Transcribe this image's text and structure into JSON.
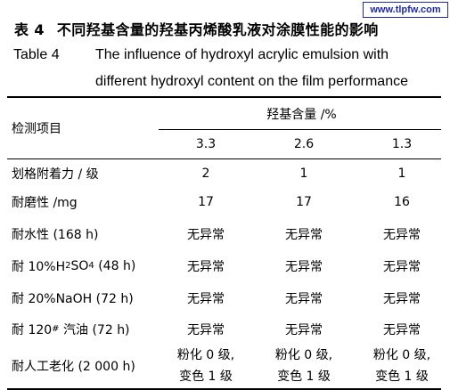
{
  "watermark": "www.tlpfw.com",
  "caption": {
    "cn_number": "表 4",
    "cn_title": "不同羟基含量的羟基丙烯酸乳液对涂膜性能的影响",
    "en_number": "Table 4",
    "en_title_line1": "The influence of hydroxyl acrylic emulsion with",
    "en_title_line2": "different hydroxyl content on the film performance"
  },
  "table": {
    "row_header": "检测项目",
    "group_header": "羟基含量 /%",
    "columns": [
      "3.3",
      "2.6",
      "1.3"
    ],
    "rows": [
      {
        "label": "划格附着力 / 级",
        "values": [
          "2",
          "1",
          "1"
        ]
      },
      {
        "label": "耐磨性 /mg",
        "values": [
          "17",
          "17",
          "16"
        ]
      },
      {
        "label": "耐水性 (168 h)",
        "values": [
          "无异常",
          "无异常",
          "无异常"
        ]
      },
      {
        "label_pre": "耐 10%H",
        "label_sub1": "2",
        "label_mid": "SO",
        "label_sub2": "4",
        "label_post": " (48 h)",
        "values": [
          "无异常",
          "无异常",
          "无异常"
        ]
      },
      {
        "label": "耐 20%NaOH (72 h)",
        "values": [
          "无异常",
          "无异常",
          "无异常"
        ]
      },
      {
        "label_pre": "耐 120",
        "label_sup": "#",
        "label_post": " 汽油 (72 h)",
        "values": [
          "无异常",
          "无异常",
          "无异常"
        ]
      },
      {
        "label": "耐人工老化 (2 000 h)",
        "values": [
          {
            "line1": "粉化 0 级,",
            "line2": "变色 1 级"
          },
          {
            "line1": "粉化 0 级,",
            "line2": "变色 1 级"
          },
          {
            "line1": "粉化 0 级,",
            "line2": "变色 1 级"
          }
        ]
      }
    ]
  }
}
